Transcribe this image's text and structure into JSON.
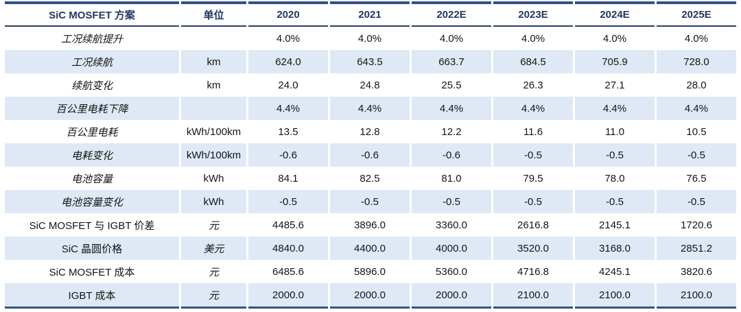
{
  "chart_data": {
    "type": "table",
    "title": "SiC MOSFET 方案",
    "columns": [
      "SiC MOSFET 方案",
      "单位",
      "2020",
      "2021",
      "2022E",
      "2023E",
      "2024E",
      "2025E"
    ],
    "rows": [
      {
        "label": "工况续航提升",
        "unit": "",
        "values": [
          "4.0%",
          "4.0%",
          "4.0%",
          "4.0%",
          "4.0%",
          "4.0%"
        ]
      },
      {
        "label": "工况续航",
        "unit": "km",
        "values": [
          "624.0",
          "643.5",
          "663.7",
          "684.5",
          "705.9",
          "728.0"
        ]
      },
      {
        "label": "续航变化",
        "unit": "km",
        "values": [
          "24.0",
          "24.8",
          "25.5",
          "26.3",
          "27.1",
          "28.0"
        ]
      },
      {
        "label": "百公里电耗下降",
        "unit": "",
        "values": [
          "4.4%",
          "4.4%",
          "4.4%",
          "4.4%",
          "4.4%",
          "4.4%"
        ]
      },
      {
        "label": "百公里电耗",
        "unit": "kWh/100km",
        "values": [
          "13.5",
          "12.8",
          "12.2",
          "11.6",
          "11.0",
          "10.5"
        ]
      },
      {
        "label": "电耗变化",
        "unit": "kWh/100km",
        "values": [
          "-0.6",
          "-0.6",
          "-0.6",
          "-0.5",
          "-0.5",
          "-0.5"
        ]
      },
      {
        "label": "电池容量",
        "unit": "kWh",
        "values": [
          "84.1",
          "82.5",
          "81.0",
          "79.5",
          "78.0",
          "76.5"
        ]
      },
      {
        "label": "电池容量变化",
        "unit": "kWh",
        "values": [
          "-0.5",
          "-0.5",
          "-0.5",
          "-0.5",
          "-0.5",
          "-0.5"
        ]
      },
      {
        "label": "SiC MOSFET 与 IGBT 价差",
        "unit": "元",
        "values": [
          "4485.6",
          "3896.0",
          "3360.0",
          "2616.8",
          "2145.1",
          "1720.6"
        ]
      },
      {
        "label": "SiC 晶圆价格",
        "unit": "美元",
        "values": [
          "4840.0",
          "4400.0",
          "4000.0",
          "3520.0",
          "3168.0",
          "2851.2"
        ]
      },
      {
        "label": "SiC MOSFET 成本",
        "unit": "元",
        "values": [
          "6485.6",
          "5896.0",
          "5360.0",
          "4716.8",
          "4245.1",
          "3820.6"
        ]
      },
      {
        "label": "IGBT 成本",
        "unit": "元",
        "values": [
          "2000.0",
          "2000.0",
          "2000.0",
          "2100.0",
          "2100.0",
          "2100.0"
        ]
      }
    ],
    "colors": {
      "header_text_navy": "#1F3864",
      "border_navy": "#33508C",
      "row_stripe_blue": "#DEE9F5",
      "cell_text": "#141414"
    },
    "layout": "striped table, thick navy top and bottom borders, thin navy rule under header, all cells center-aligned"
  }
}
